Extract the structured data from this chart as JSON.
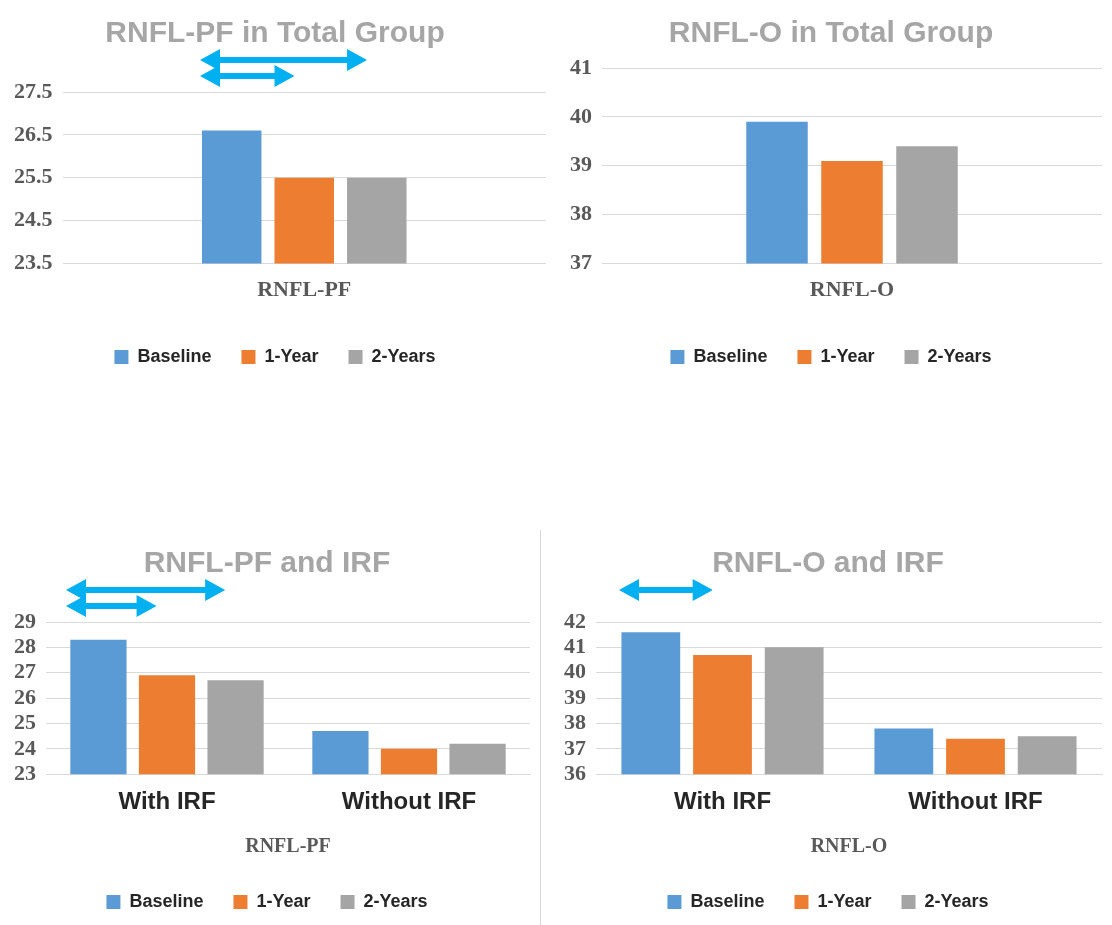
{
  "chart_data": [
    {
      "type": "bar",
      "title": "RNFL-PF in Total Group",
      "categories": [
        "RNFL-PF"
      ],
      "series": [
        {
          "name": "Baseline",
          "color": "#5b9bd5",
          "values": [
            26.6
          ]
        },
        {
          "name": "1-Year",
          "color": "#ed7d31",
          "values": [
            25.5
          ]
        },
        {
          "name": "2-Years",
          "color": "#a5a5a5",
          "values": [
            25.5
          ]
        }
      ],
      "ylim": [
        23.5,
        27.5
      ],
      "yticks": [
        23.5,
        24.5,
        25.5,
        26.5,
        27.5
      ],
      "grid": "y",
      "legend": "bottom"
    },
    {
      "type": "bar",
      "title": "RNFL-O in Total Group",
      "categories": [
        "RNFL-O"
      ],
      "series": [
        {
          "name": "Baseline",
          "color": "#5b9bd5",
          "values": [
            39.9
          ]
        },
        {
          "name": "1-Year",
          "color": "#ed7d31",
          "values": [
            39.1
          ]
        },
        {
          "name": "2-Years",
          "color": "#a5a5a5",
          "values": [
            39.4
          ]
        }
      ],
      "ylim": [
        37,
        41
      ],
      "yticks": [
        37,
        38,
        39,
        40,
        41
      ],
      "grid": "y",
      "legend": "bottom"
    },
    {
      "type": "bar",
      "title": "RNFL-PF and IRF",
      "xlabel": "RNFL-PF",
      "categories": [
        "With IRF",
        "Without IRF"
      ],
      "series": [
        {
          "name": "Baseline",
          "color": "#5b9bd5",
          "values": [
            28.3,
            24.7
          ]
        },
        {
          "name": "1-Year",
          "color": "#ed7d31",
          "values": [
            26.9,
            24.0
          ]
        },
        {
          "name": "2-Years",
          "color": "#a5a5a5",
          "values": [
            26.7,
            24.2
          ]
        }
      ],
      "ylim": [
        23,
        29
      ],
      "yticks": [
        23,
        24,
        25,
        26,
        27,
        28,
        29
      ],
      "grid": "y",
      "legend": "bottom"
    },
    {
      "type": "bar",
      "title": "RNFL-O and IRF",
      "xlabel": "RNFL-O",
      "categories": [
        "With IRF",
        "Without IRF"
      ],
      "series": [
        {
          "name": "Baseline",
          "color": "#5b9bd5",
          "values": [
            41.6,
            37.8
          ]
        },
        {
          "name": "1-Year",
          "color": "#ed7d31",
          "values": [
            40.7,
            37.4
          ]
        },
        {
          "name": "2-Years",
          "color": "#a5a5a5",
          "values": [
            41.0,
            37.5
          ]
        }
      ],
      "ylim": [
        36,
        42
      ],
      "yticks": [
        36,
        37,
        38,
        39,
        40,
        41,
        42
      ],
      "grid": "y",
      "legend": "bottom"
    }
  ]
}
